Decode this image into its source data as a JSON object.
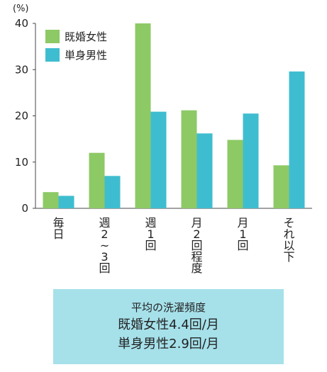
{
  "chart_data": {
    "type": "bar",
    "unit_label": "(%)",
    "categories": [
      "毎日",
      "週2~3回",
      "週1回",
      "月2回程度",
      "月1回",
      "それ以下"
    ],
    "series": [
      {
        "name": "既婚女性",
        "color": "#8dc965",
        "values": [
          3.5,
          12,
          40,
          21.2,
          14.8,
          9.3
        ]
      },
      {
        "name": "単身男性",
        "color": "#3fbdd0",
        "values": [
          2.7,
          7,
          20.9,
          16.2,
          20.5,
          29.6
        ]
      }
    ],
    "ylim": [
      0,
      40
    ],
    "yticks": [
      0,
      10,
      20,
      30,
      40
    ],
    "grid": false,
    "legend_position": "top-left"
  },
  "summary": {
    "title": "平均の洗濯頻度",
    "line1": "既婚女性4.4回/月",
    "line2": "単身男性2.9回/月"
  }
}
